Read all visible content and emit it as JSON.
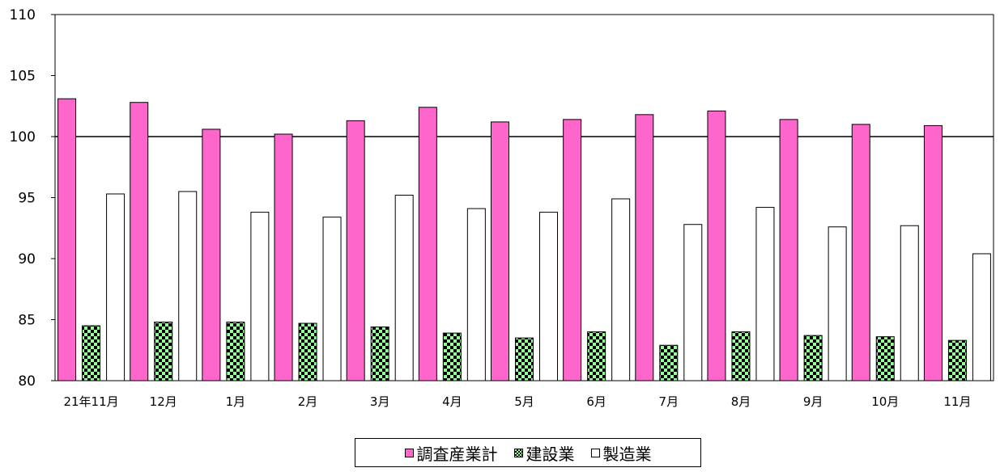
{
  "chart_data": {
    "type": "bar",
    "title": "",
    "xlabel": "",
    "ylabel": "",
    "ylim": [
      80,
      110
    ],
    "yticks": [
      80,
      85,
      90,
      95,
      100,
      105,
      110
    ],
    "reference_line": 100,
    "categories": [
      "21年11月",
      "12月",
      "1月",
      "2月",
      "3月",
      "4月",
      "5月",
      "6月",
      "7月",
      "8月",
      "9月",
      "10月",
      "11月"
    ],
    "series": [
      {
        "name": "調査産業計",
        "color": "#ff66cc",
        "pattern": "solid",
        "values": [
          103.1,
          102.8,
          100.6,
          100.2,
          101.3,
          102.4,
          101.2,
          101.4,
          101.8,
          102.1,
          101.4,
          101.0,
          100.9
        ]
      },
      {
        "name": "建設業",
        "color": "#99ff99",
        "pattern": "checkerboard",
        "values": [
          84.5,
          84.8,
          84.8,
          84.7,
          84.4,
          83.9,
          83.5,
          84.0,
          82.9,
          84.0,
          83.7,
          83.6,
          83.3
        ]
      },
      {
        "name": "製造業",
        "color": "#ffffff",
        "pattern": "solid",
        "values": [
          95.3,
          95.5,
          93.8,
          93.4,
          95.2,
          94.1,
          93.8,
          94.9,
          92.8,
          94.2,
          92.6,
          92.7,
          90.4
        ]
      }
    ],
    "legend_position": "bottom"
  }
}
